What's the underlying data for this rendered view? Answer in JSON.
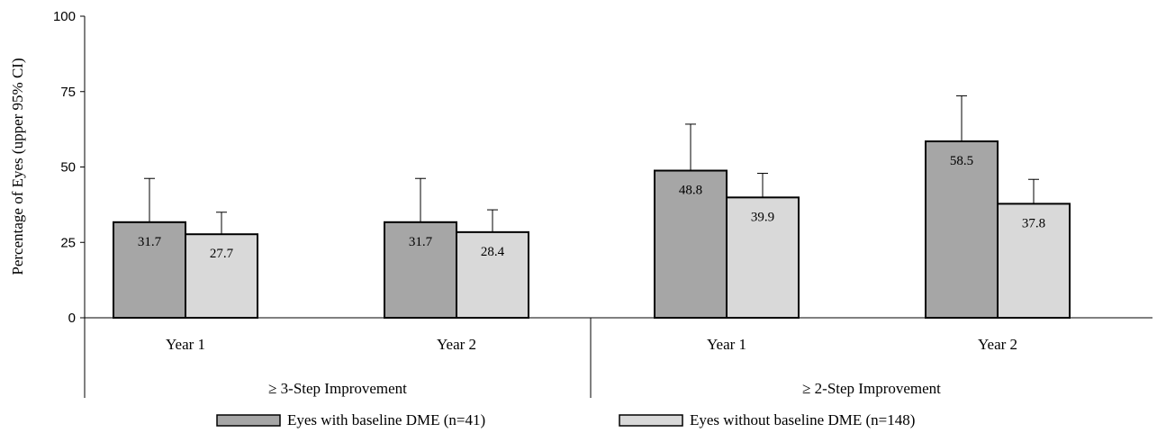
{
  "chart_data": {
    "type": "bar",
    "ylabel": "Percentage of Eyes (upper 95% CI)",
    "ylim": [
      0,
      100
    ],
    "yticks": [
      0,
      25,
      50,
      75,
      100
    ],
    "groups": [
      {
        "label": "≥ 3-Step Improvement",
        "categories": [
          "Year 1",
          "Year 2"
        ]
      },
      {
        "label": "≥ 2-Step Improvement",
        "categories": [
          "Year 1",
          "Year 2"
        ]
      }
    ],
    "series": [
      {
        "name": "Eyes with baseline DME (n=41)",
        "color": "#a6a6a6",
        "values": [
          31.7,
          31.7,
          48.8,
          58.5
        ],
        "labels": [
          "31.7",
          "31.7",
          "48.8",
          "58.5"
        ],
        "upper_ci": [
          46.2,
          46.2,
          64.2,
          73.6
        ]
      },
      {
        "name": "Eyes without baseline DME (n=148)",
        "color": "#d9d9d9",
        "values": [
          27.7,
          28.4,
          39.9,
          37.8
        ],
        "labels": [
          "27.7",
          "28.4",
          "39.9",
          "37.8"
        ],
        "upper_ci": [
          35.0,
          35.8,
          47.9,
          45.9
        ]
      }
    ],
    "grid": false,
    "legend_position": "bottom"
  }
}
